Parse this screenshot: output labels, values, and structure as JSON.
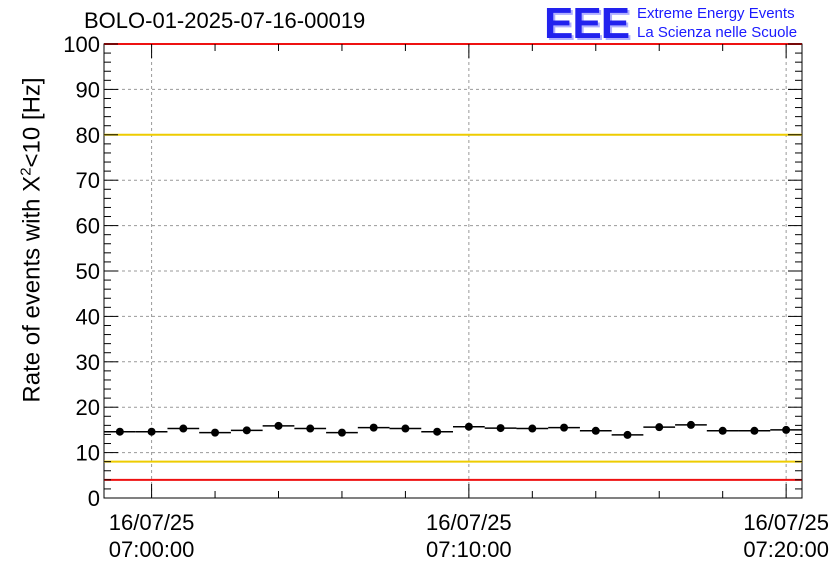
{
  "header": {
    "title": "BOLO-01-2025-07-16-00019",
    "logo": "EEE",
    "logo_line1": "Extreme Energy Events",
    "logo_line2": "La Scienza nelle Scuole"
  },
  "chart_data": {
    "type": "scatter",
    "ylabel_prefix": "Rate of events with X",
    "ylabel_sup": "2",
    "ylabel_suffix": "<10 [Hz]",
    "ylim": [
      0,
      100
    ],
    "xlim_minutes": [
      -1.5,
      20.5
    ],
    "x_time_start": "07:00:00",
    "yticks": [
      0,
      10,
      20,
      30,
      40,
      50,
      60,
      70,
      80,
      90,
      100
    ],
    "xticks": [
      {
        "x_minutes": 0,
        "date": "16/07/25",
        "time": "07:00:00"
      },
      {
        "x_minutes": 10,
        "date": "16/07/25",
        "time": "07:10:00"
      },
      {
        "x_minutes": 20,
        "date": "16/07/25",
        "time": "07:20:00"
      }
    ],
    "grid": true,
    "bin_width_minutes": 1,
    "series": [
      {
        "x_minutes": [
          -1,
          0,
          1,
          2,
          3,
          4,
          5,
          6,
          7,
          8,
          9,
          10,
          11,
          12,
          13,
          14,
          15,
          16,
          17,
          18,
          19,
          20
        ],
        "values": [
          14.6,
          14.6,
          15.3,
          14.4,
          14.9,
          15.9,
          15.3,
          14.4,
          15.5,
          15.3,
          14.6,
          15.7,
          15.4,
          15.3,
          15.5,
          14.8,
          13.9,
          15.6,
          16.1,
          14.8,
          14.8,
          15.0
        ]
      }
    ],
    "reference_lines": [
      {
        "y": 100,
        "color": "#ee1111"
      },
      {
        "y": 80,
        "color": "#eecc00"
      },
      {
        "y": 8,
        "color": "#eecc00"
      },
      {
        "y": 4,
        "color": "#ee1111"
      }
    ]
  }
}
